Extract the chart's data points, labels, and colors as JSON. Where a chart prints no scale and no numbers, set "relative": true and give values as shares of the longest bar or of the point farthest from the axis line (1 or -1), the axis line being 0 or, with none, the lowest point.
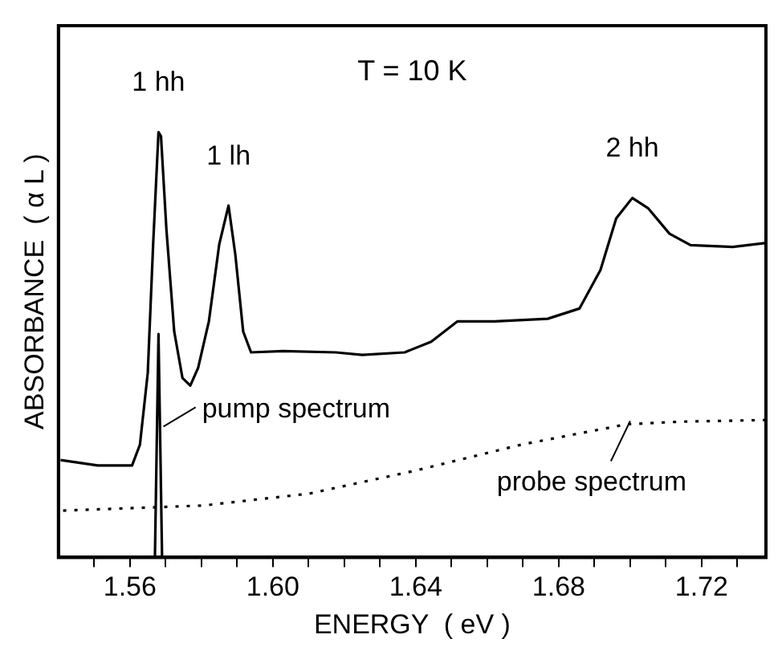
{
  "chart_data": {
    "type": "line",
    "relative": true,
    "xlabel": "ENERGY  ( eV )",
    "ylabel": "ABSORBANCE  ( α L )",
    "xlim": [
      1.54,
      1.738
    ],
    "xticks": [
      {
        "value": 1.55,
        "label": null
      },
      1.56,
      {
        "value": 1.57,
        "label": null
      },
      {
        "value": 1.58,
        "label": null
      },
      {
        "value": 1.59,
        "label": null
      },
      {
        "value": 1.6,
        "label": "1.60"
      },
      {
        "value": 1.61,
        "label": null
      },
      {
        "value": 1.62,
        "label": null
      },
      {
        "value": 1.63,
        "label": null
      },
      1.64,
      {
        "value": 1.65,
        "label": null
      },
      {
        "value": 1.66,
        "label": null
      },
      {
        "value": 1.67,
        "label": null
      },
      1.68,
      {
        "value": 1.69,
        "label": null
      },
      {
        "value": 1.7,
        "label": null
      },
      {
        "value": 1.71,
        "label": null
      },
      1.72,
      {
        "value": 1.73,
        "label": null
      }
    ],
    "tick_labels": "x",
    "grid": false,
    "legend": false,
    "marker": "none",
    "series": [
      {
        "color": "#000000",
        "line_style": "solid",
        "x": [
          1.5406,
          1.551,
          1.5606,
          1.5628,
          1.565,
          1.5665,
          1.568,
          1.5687,
          1.5702,
          1.5724,
          1.5747,
          1.5769,
          1.5791,
          1.5821,
          1.585,
          1.5876,
          1.5895,
          1.5917,
          1.5939,
          1.6028,
          1.6176,
          1.625,
          1.6369,
          1.6443,
          1.6517,
          1.6621,
          1.6769,
          1.6858,
          1.6917,
          1.6961,
          1.7006,
          1.705,
          1.711,
          1.7169,
          1.7287,
          1.7376
        ],
        "values": [
          0.229,
          0.216,
          0.216,
          0.265,
          0.434,
          0.736,
          1.0,
          0.99,
          0.773,
          0.531,
          0.422,
          0.404,
          0.446,
          0.555,
          0.736,
          0.827,
          0.712,
          0.531,
          0.482,
          0.485,
          0.482,
          0.476,
          0.482,
          0.507,
          0.555,
          0.555,
          0.561,
          0.585,
          0.676,
          0.797,
          0.845,
          0.821,
          0.761,
          0.734,
          0.73,
          0.739
        ]
      },
      {
        "color": "#000000",
        "line_style": "solid",
        "x": [
          1.567,
          1.568,
          1.569
        ],
        "values": [
          0,
          0.525,
          0
        ]
      },
      {
        "color": "#000000",
        "line_style": "dotted",
        "x": [
          1.5413,
          1.5806,
          1.6102,
          1.6399,
          1.6695,
          1.6991,
          1.7139,
          1.7376
        ],
        "values": [
          0.11,
          0.122,
          0.15,
          0.204,
          0.265,
          0.313,
          0.319,
          0.323
        ]
      }
    ],
    "annotations": [
      "T = 10 K",
      {
        "text": "1 hh",
        "x": 1.568,
        "y": 1.0
      },
      {
        "text": "1 lh",
        "x": 1.5876,
        "y": 0.827
      },
      {
        "text": "2 hh",
        "x": 1.7006,
        "y": 0.845
      },
      {
        "text": "pump spectrum",
        "x": 1.5685,
        "y": 0.3
      },
      {
        "text": "probe spectrum",
        "x": 1.6991,
        "y": 0.313
      }
    ]
  }
}
